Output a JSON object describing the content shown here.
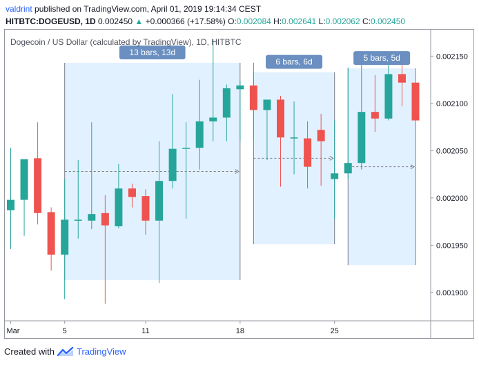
{
  "header": {
    "user": "valdrint",
    "published_text": "published on TradingView.com, April 01, 2019 19:14:34 CEST",
    "symbol": "HITBTC:DOGEUSD, 1D",
    "last": "0.002450",
    "change_arrow": "▲",
    "change": "+0.000366 (+17.58%)",
    "o_label": "O:",
    "o_value": "0.002084",
    "h_label": "H:",
    "h_value": "0.002641",
    "l_label": "L:",
    "l_value": "0.002062",
    "c_label": "C:",
    "c_value": "0.002450",
    "up_color": "#26a69a"
  },
  "footer": {
    "created_with": "Created with",
    "brand": "TradingView",
    "logo_icon": "tradingview-logo-icon"
  },
  "chart_data": {
    "type": "candlestick",
    "title": "Dogecoin / US Dollar (calculated by TradingView), 1D, HITBTC",
    "colors": {
      "up": "#26a69a",
      "down": "#ef5350",
      "measure_fill": "#ddeeff",
      "measure_badge": "#6a8fc0"
    },
    "x_ticks": [
      {
        "label": "Mar",
        "index": 0
      },
      {
        "label": "5",
        "index": 4
      },
      {
        "label": "11",
        "index": 10
      },
      {
        "label": "18",
        "index": 17
      },
      {
        "label": "25",
        "index": 24
      }
    ],
    "y_ticks": [
      "0.001900",
      "0.001950",
      "0.002000",
      "0.002050",
      "0.002100",
      "0.002150"
    ],
    "ylim": [
      0.00187,
      0.002178
    ],
    "candles": [
      {
        "o": 0.001987,
        "h": 0.002053,
        "l": 0.001946,
        "c": 0.001998
      },
      {
        "o": 0.001998,
        "h": 0.002039,
        "l": 0.00196,
        "c": 0.002041
      },
      {
        "o": 0.002042,
        "h": 0.00208,
        "l": 0.001972,
        "c": 0.001984
      },
      {
        "o": 0.001985,
        "h": 0.00199,
        "l": 0.001923,
        "c": 0.00194
      },
      {
        "o": 0.00194,
        "h": 0.00202,
        "l": 0.001893,
        "c": 0.001977
      },
      {
        "o": 0.001977,
        "h": 0.00204,
        "l": 0.001957,
        "c": 0.001977
      },
      {
        "o": 0.001976,
        "h": 0.00208,
        "l": 0.001967,
        "c": 0.001983
      },
      {
        "o": 0.001984,
        "h": 0.002003,
        "l": 0.001888,
        "c": 0.001971
      },
      {
        "o": 0.00197,
        "h": 0.002036,
        "l": 0.001968,
        "c": 0.00201
      },
      {
        "o": 0.00201,
        "h": 0.002015,
        "l": 0.00199,
        "c": 0.002001
      },
      {
        "o": 0.002002,
        "h": 0.002009,
        "l": 0.001961,
        "c": 0.001976
      },
      {
        "o": 0.001976,
        "h": 0.00206,
        "l": 0.00191,
        "c": 0.002018
      },
      {
        "o": 0.002018,
        "h": 0.00211,
        "l": 0.00201,
        "c": 0.002052
      },
      {
        "o": 0.002052,
        "h": 0.00208,
        "l": 0.001978,
        "c": 0.002053
      },
      {
        "o": 0.002053,
        "h": 0.002125,
        "l": 0.00203,
        "c": 0.002081
      },
      {
        "o": 0.002081,
        "h": 0.002168,
        "l": 0.00206,
        "c": 0.002085
      },
      {
        "o": 0.002085,
        "h": 0.00212,
        "l": 0.00206,
        "c": 0.002116
      },
      {
        "o": 0.002115,
        "h": 0.002124,
        "l": 0.00206,
        "c": 0.002119
      },
      {
        "o": 0.002119,
        "h": 0.002143,
        "l": 0.00206,
        "c": 0.002093
      },
      {
        "o": 0.002093,
        "h": 0.002102,
        "l": 0.00204,
        "c": 0.002104
      },
      {
        "o": 0.002104,
        "h": 0.002108,
        "l": 0.002012,
        "c": 0.002064
      },
      {
        "o": 0.002064,
        "h": 0.002102,
        "l": 0.002025,
        "c": 0.002064
      },
      {
        "o": 0.002063,
        "h": 0.002081,
        "l": 0.00201,
        "c": 0.002033
      },
      {
        "o": 0.002072,
        "h": 0.002089,
        "l": 0.002013,
        "c": 0.00206
      },
      {
        "o": 0.00202,
        "h": 0.002082,
        "l": 0.001978,
        "c": 0.002026
      },
      {
        "o": 0.002026,
        "h": 0.002138,
        "l": 0.00202,
        "c": 0.002037
      },
      {
        "o": 0.002037,
        "h": 0.002151,
        "l": 0.00203,
        "c": 0.002091
      },
      {
        "o": 0.002091,
        "h": 0.00213,
        "l": 0.00207,
        "c": 0.002084
      },
      {
        "o": 0.002084,
        "h": 0.002142,
        "l": 0.002082,
        "c": 0.002131
      },
      {
        "o": 0.002131,
        "h": 0.002155,
        "l": 0.002097,
        "c": 0.002122
      },
      {
        "o": 0.002122,
        "h": 0.002128,
        "l": 0.00208,
        "c": 0.002082
      }
    ],
    "measurements": [
      {
        "label": "13 bars, 13d",
        "start_index": 4,
        "end_index": 17,
        "top": 0.002143,
        "bottom": 0.001913,
        "arrow_value": 0.002028
      },
      {
        "label": "6 bars, 6d",
        "start_index": 18,
        "end_index": 24,
        "top": 0.002133,
        "bottom": 0.001951,
        "arrow_value": 0.002042
      },
      {
        "label": "5 bars, 5d",
        "start_index": 25,
        "end_index": 30,
        "top": 0.002137,
        "bottom": 0.001929,
        "arrow_value": 0.002033
      }
    ]
  }
}
